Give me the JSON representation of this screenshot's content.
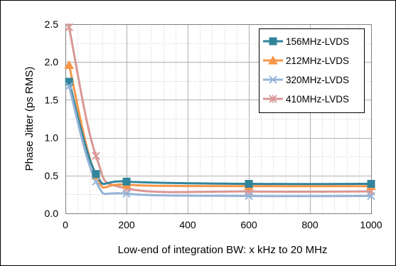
{
  "chart_data": {
    "type": "scatter",
    "title": "",
    "xlabel": "Low-end of integration BW: x kHz to 20 MHz",
    "ylabel": "Phase Jitter (ps RMS)",
    "xlim": [
      0,
      1000
    ],
    "ylim": [
      0,
      2.5
    ],
    "x_ticks": [
      0,
      200,
      400,
      600,
      800,
      1000
    ],
    "y_ticks": [
      0.0,
      0.5,
      1.0,
      1.5,
      2.0,
      2.5
    ],
    "x_tick_labels": [
      "0",
      "200",
      "400",
      "600",
      "800",
      "1000"
    ],
    "y_tick_labels": [
      "0.0",
      "0.5",
      "1.0",
      "1.5",
      "2.0",
      "2.5"
    ],
    "grid": {
      "major": true,
      "minor_vertical": true
    },
    "legend_position": "top-right",
    "smooth_lines": true,
    "series": [
      {
        "name": "156MHz-LVDS",
        "color": "#31849b",
        "marker": "square",
        "x": [
          12,
          100,
          200,
          600,
          1000
        ],
        "y": [
          1.74,
          0.52,
          0.42,
          0.39,
          0.39
        ]
      },
      {
        "name": "212MHz-LVDS",
        "color": "#f79646",
        "marker": "triangle",
        "x": [
          12,
          100,
          200,
          600,
          1000
        ],
        "y": [
          1.96,
          0.5,
          0.38,
          0.36,
          0.36
        ]
      },
      {
        "name": "320MHz-LVDS",
        "color": "#95b3d7",
        "marker": "x",
        "x": [
          12,
          100,
          200,
          600,
          1000
        ],
        "y": [
          1.68,
          0.42,
          0.26,
          0.23,
          0.23
        ]
      },
      {
        "name": "410MHz-LVDS",
        "color": "#d99795",
        "marker": "star",
        "x": [
          12,
          100,
          200,
          600,
          1000
        ],
        "y": [
          2.46,
          0.76,
          0.33,
          0.29,
          0.29
        ]
      }
    ]
  }
}
